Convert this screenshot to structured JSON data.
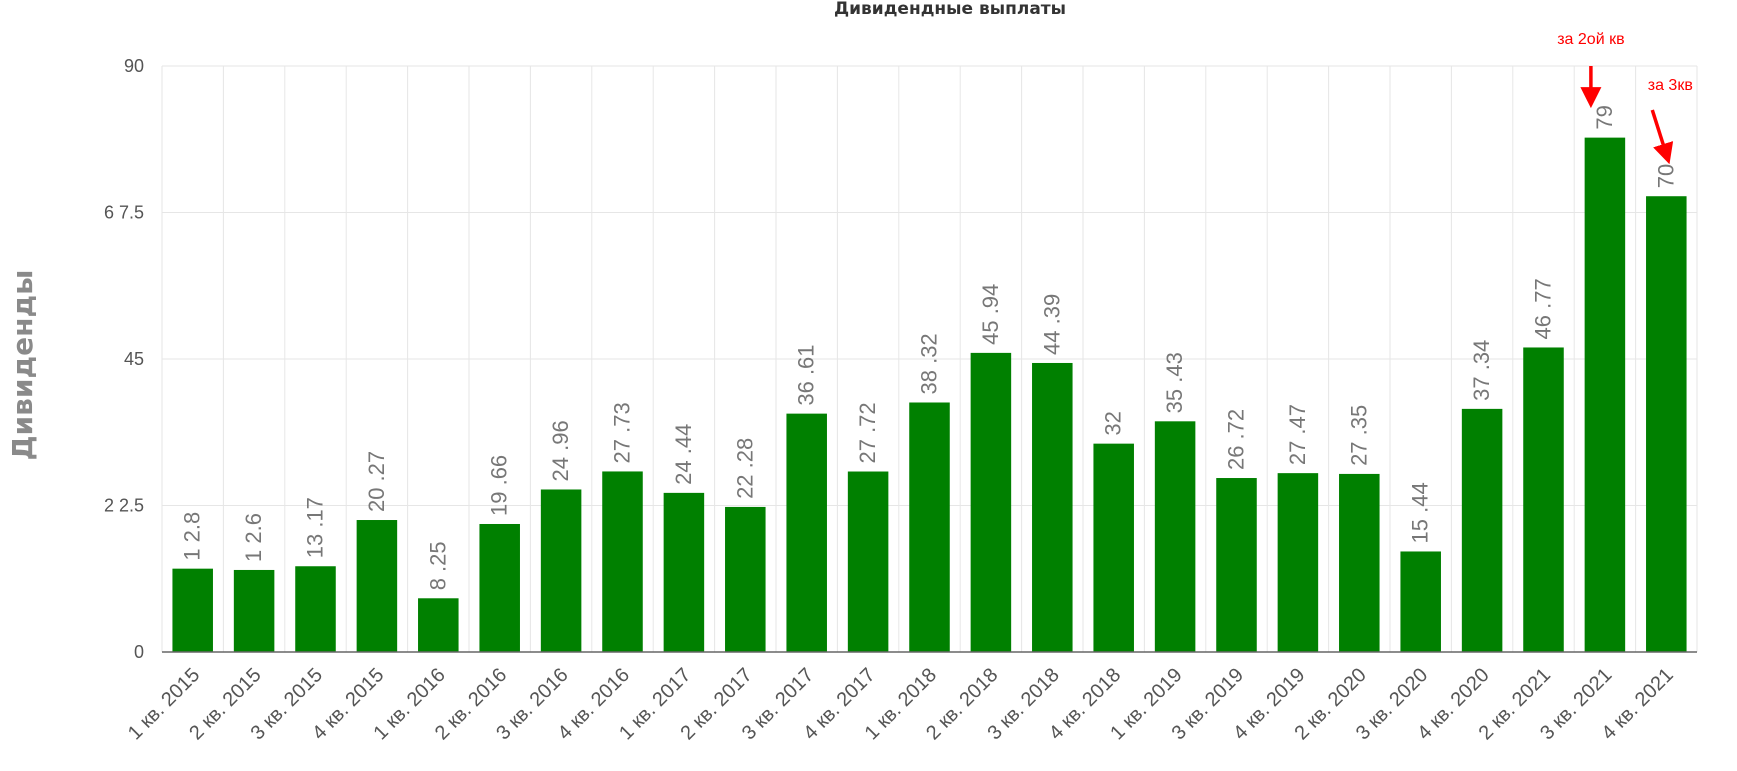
{
  "chart_data": {
    "type": "bar",
    "title": "Дивидендные выплаты",
    "ylabel": "Дивиденды",
    "xlabel": "",
    "ylim": [
      0,
      90
    ],
    "yticks": [
      0,
      22.5,
      45,
      67.5,
      90
    ],
    "ytick_labels": [
      "0",
      "2 2.5",
      "45",
      "6 7.5",
      "90"
    ],
    "grid": true,
    "bar_color": "#008000",
    "categories": [
      "1 кв. 2015",
      "2 кв. 2015",
      "3 кв. 2015",
      "4 кв. 2015",
      "1 кв. 2016",
      "2 кв. 2016",
      "3 кв. 2016",
      "4 кв. 2016",
      "1 кв. 2017",
      "2 кв. 2017",
      "3 кв. 2017",
      "4 кв. 2017",
      "1 кв. 2018",
      "2 кв. 2018",
      "3 кв. 2018",
      "4 кв. 2018",
      "1 кв. 2019",
      "3 кв. 2019",
      "4 кв. 2019",
      "2 кв. 2020",
      "3 кв. 2020",
      "4 кв. 2020",
      "2 кв. 2021",
      "3 кв. 2021",
      "4 кв. 2021"
    ],
    "values": [
      12.8,
      12.6,
      13.17,
      20.27,
      8.25,
      19.66,
      24.96,
      27.73,
      24.44,
      22.28,
      36.61,
      27.72,
      38.32,
      45.94,
      44.39,
      32,
      35.43,
      26.72,
      27.47,
      27.35,
      15.44,
      37.34,
      46.77,
      79,
      70
    ],
    "data_labels": [
      "1 2.8",
      "1 2.6",
      "13 .17",
      "20 .27",
      "8 .25",
      "19 .66",
      "24 .96",
      "27 .73",
      "24 .44",
      "22 .28",
      "36 .61",
      "27 .72",
      "38 .32",
      "45 .94",
      "44 .39",
      "32",
      "35 .43",
      "26 .72",
      "27 .47",
      "27 .35",
      "15 .44",
      "37 .34",
      "46 .77",
      "79",
      "70"
    ],
    "annotations": [
      {
        "text": "за 2ой кв",
        "category": "3 кв. 2021",
        "color": "#ff0000"
      },
      {
        "text": "за 3кв",
        "category": "4 кв. 2021",
        "color": "#ff0000"
      }
    ]
  }
}
